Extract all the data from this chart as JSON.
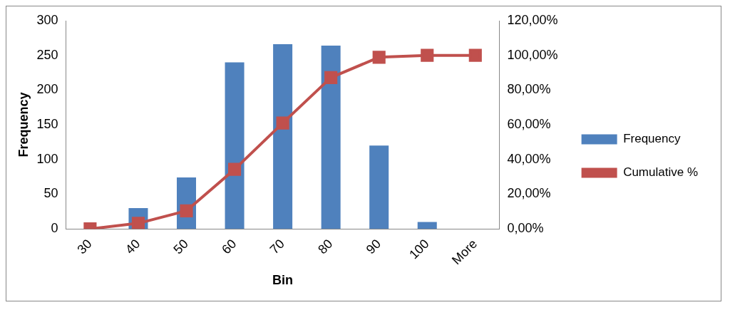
{
  "chart_data": {
    "type": "bar",
    "xlabel": "Bin",
    "ylabel": "Frequency",
    "categories": [
      "30",
      "40",
      "50",
      "60",
      "70",
      "80",
      "90",
      "100",
      "More"
    ],
    "series": [
      {
        "name": "Frequency",
        "color": "#4f81bd",
        "values": [
          0,
          30,
          74,
          240,
          266,
          264,
          120,
          10,
          0
        ]
      },
      {
        "name": "Cumulative %",
        "type": "line",
        "axis": "y2",
        "color": "#c0504d",
        "marker": "square",
        "values": [
          0,
          3.2,
          10.4,
          34.3,
          61,
          87.2,
          98.9,
          100,
          100
        ]
      }
    ],
    "ylim": [
      0,
      300
    ],
    "yticks": [
      0,
      50,
      100,
      150,
      200,
      250,
      300
    ],
    "y2lim": [
      0,
      120
    ],
    "y2ticks": [
      {
        "value": 0,
        "label": "0,00%"
      },
      {
        "value": 20,
        "label": "20,00%"
      },
      {
        "value": 40,
        "label": "40,00%"
      },
      {
        "value": 60,
        "label": "60,00%"
      },
      {
        "value": 80,
        "label": "80,00%"
      },
      {
        "value": 100,
        "label": "100,00%"
      },
      {
        "value": 120,
        "label": "120,00%"
      }
    ],
    "grid": false,
    "legend": "right"
  }
}
